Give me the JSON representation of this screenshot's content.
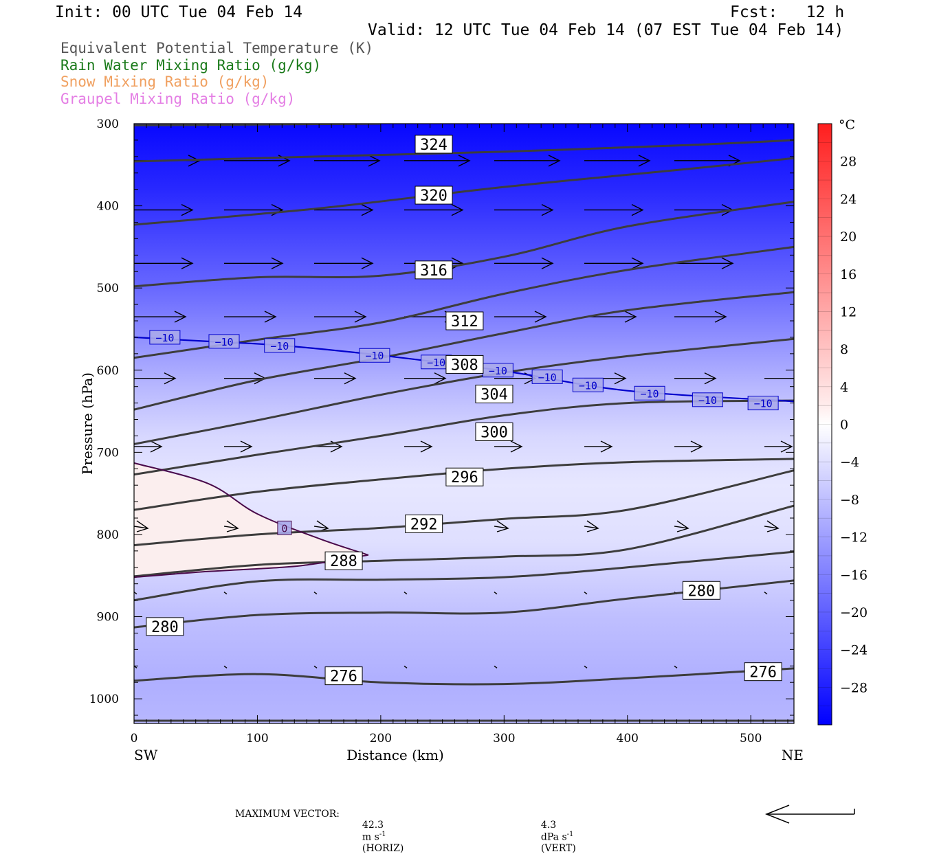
{
  "header": {
    "init": "Init: 00 UTC Tue 04 Feb 14",
    "fcst": "Fcst:   12 h",
    "valid": "Valid: 12 UTC Tue 04 Feb 14 (07 EST Tue 04 Feb 14)"
  },
  "legend": [
    {
      "label": "Equivalent Potential Temperature (K)",
      "color": "#555555"
    },
    {
      "label": "Rain Water Mixing Ratio (g/kg)",
      "color": "#1a7a1a"
    },
    {
      "label": "Snow Mixing Ratio (g/kg)",
      "color": "#f0a060"
    },
    {
      "label": "Graupel Mixing Ratio (g/kg)",
      "color": "#e47ee4"
    }
  ],
  "footer": {
    "max_vector_label": "MAXIMUM VECTOR:",
    "horiz_value": "42.3",
    "horiz_unit": "m s",
    "horiz_tag": "(HORIZ)",
    "vert_value": "4.3",
    "vert_unit": "dPa s",
    "vert_tag": "(VERT)",
    "exponent": "-1"
  },
  "chart_data": {
    "type": "cross-section contour",
    "xlabel": "Distance (km)",
    "ylabel": "Pressure (hPa)",
    "x_left_label": "SW",
    "x_right_label": "NE",
    "xlim": [
      0,
      535
    ],
    "ylim": [
      300,
      1030
    ],
    "x_ticks": [
      0,
      100,
      200,
      300,
      400,
      500
    ],
    "y_ticks": [
      300,
      400,
      500,
      600,
      700,
      800,
      900,
      1000
    ],
    "colorbar": {
      "unit": "°C",
      "range": [
        -32,
        32
      ],
      "tick_labels": [
        "28",
        "24",
        "20",
        "16",
        "12",
        "8",
        "4",
        "0",
        "−4",
        "−8",
        "−12",
        "−16",
        "−20",
        "−24",
        "−28"
      ],
      "tick_values": [
        28,
        24,
        20,
        16,
        12,
        8,
        4,
        0,
        -4,
        -8,
        -12,
        -16,
        -20,
        -24,
        -28
      ]
    },
    "temperature_bands": [
      {
        "p": 300,
        "t": -31
      },
      {
        "p": 380,
        "t": -27
      },
      {
        "p": 440,
        "t": -23
      },
      {
        "p": 500,
        "t": -19
      },
      {
        "p": 560,
        "t": -14
      },
      {
        "p": 620,
        "t": -9
      },
      {
        "p": 680,
        "t": -5
      },
      {
        "p": 740,
        "t": -3
      },
      {
        "p": 810,
        "t": -4
      },
      {
        "p": 900,
        "t": -8
      },
      {
        "p": 980,
        "t": -10
      },
      {
        "p": 1030,
        "t": -9
      }
    ],
    "theta_e_lines": [
      {
        "label": "324",
        "label_at": [
          243,
          325
        ],
        "points": [
          [
            0,
            302
          ],
          [
            200,
            300
          ]
        ]
      },
      {
        "label": "",
        "label_at": null,
        "points": [
          [
            0,
            346
          ],
          [
            150,
            340
          ],
          [
            300,
            334
          ],
          [
            450,
            326
          ],
          [
            535,
            320
          ]
        ]
      },
      {
        "label": "320",
        "label_at": [
          243,
          387
        ],
        "points": [
          [
            0,
            423
          ],
          [
            150,
            403
          ],
          [
            300,
            377
          ],
          [
            450,
            355
          ],
          [
            535,
            342
          ]
        ]
      },
      {
        "label": "",
        "label_at": null,
        "points": [
          [
            0,
            498
          ],
          [
            100,
            487
          ],
          [
            200,
            485
          ],
          [
            300,
            462
          ],
          [
            400,
            425
          ],
          [
            535,
            395
          ]
        ]
      },
      {
        "label": "316",
        "label_at": [
          243,
          478
        ],
        "points": [
          [
            0,
            585
          ],
          [
            100,
            563
          ],
          [
            200,
            542
          ],
          [
            300,
            507
          ],
          [
            400,
            478
          ],
          [
            535,
            450
          ]
        ]
      },
      {
        "label": "312",
        "label_at": [
          268,
          540
        ],
        "points": [
          [
            0,
            648
          ],
          [
            100,
            612
          ],
          [
            200,
            585
          ],
          [
            300,
            555
          ],
          [
            400,
            527
          ],
          [
            535,
            505
          ]
        ]
      },
      {
        "label": "308",
        "label_at": [
          268,
          593
        ],
        "points": [
          [
            0,
            690
          ],
          [
            100,
            661
          ],
          [
            200,
            630
          ],
          [
            300,
            603
          ],
          [
            400,
            583
          ],
          [
            535,
            562
          ]
        ]
      },
      {
        "label": "304",
        "label_at": [
          292,
          629
        ],
        "points": [
          [
            0,
            727
          ],
          [
            100,
            703
          ],
          [
            200,
            680
          ],
          [
            300,
            655
          ],
          [
            400,
            640
          ],
          [
            535,
            637
          ]
        ]
      },
      {
        "label": "300",
        "label_at": [
          292,
          675
        ],
        "points": [
          [
            0,
            770
          ],
          [
            100,
            748
          ],
          [
            200,
            733
          ],
          [
            300,
            720
          ],
          [
            400,
            712
          ],
          [
            535,
            708
          ]
        ]
      },
      {
        "label": "296",
        "label_at": [
          268,
          730
        ],
        "points": [
          [
            0,
            813
          ],
          [
            100,
            800
          ],
          [
            200,
            792
          ],
          [
            300,
            781
          ],
          [
            400,
            770
          ],
          [
            535,
            722
          ]
        ]
      },
      {
        "label": "292",
        "label_at": [
          235,
          787
        ],
        "points": [
          [
            0,
            851
          ],
          [
            100,
            837
          ],
          [
            200,
            832
          ],
          [
            300,
            827
          ],
          [
            400,
            818
          ],
          [
            535,
            765
          ]
        ]
      },
      {
        "label": "288",
        "label_at": [
          170,
          832
        ],
        "points": [
          [
            0,
            880
          ],
          [
            100,
            857
          ],
          [
            200,
            855
          ],
          [
            300,
            852
          ],
          [
            400,
            840
          ],
          [
            535,
            821
          ]
        ]
      },
      {
        "label": "280",
        "label_at": [
          25,
          912
        ],
        "points": [
          [
            0,
            913
          ],
          [
            100,
            898
          ],
          [
            200,
            895
          ],
          [
            300,
            895
          ],
          [
            400,
            878
          ],
          [
            535,
            856
          ]
        ]
      },
      {
        "label": "280",
        "label_at": [
          460,
          868
        ],
        "points": []
      },
      {
        "label": "276",
        "label_at": [
          170,
          972
        ],
        "points": [
          [
            0,
            978
          ],
          [
            100,
            970
          ],
          [
            200,
            980
          ],
          [
            300,
            982
          ],
          [
            400,
            975
          ],
          [
            535,
            963
          ]
        ]
      },
      {
        "label": "276",
        "label_at": [
          510,
          967
        ],
        "points": []
      }
    ],
    "isotherms": [
      {
        "label": "−10",
        "color": "#0000cc",
        "points": [
          [
            0,
            560
          ],
          [
            60,
            565
          ],
          [
            120,
            570
          ],
          [
            200,
            582
          ],
          [
            300,
            601
          ],
          [
            400,
            625
          ],
          [
            535,
            638
          ]
        ],
        "label_at": [
          [
            25,
            560
          ],
          [
            73,
            565
          ],
          [
            118,
            570
          ],
          [
            195,
            582
          ],
          [
            245,
            590
          ],
          [
            295,
            600
          ],
          [
            335,
            608
          ],
          [
            368,
            618
          ],
          [
            418,
            628
          ],
          [
            465,
            636
          ],
          [
            510,
            640
          ]
        ]
      },
      {
        "label": "0",
        "color": "#4a0a4a",
        "points": [
          [
            0,
            713
          ],
          [
            60,
            738
          ],
          [
            100,
            775
          ],
          [
            150,
            805
          ],
          [
            190,
            825
          ],
          [
            150,
            835
          ],
          [
            120,
            840
          ],
          [
            60,
            845
          ],
          [
            0,
            852
          ]
        ],
        "label_at": [
          [
            122,
            792
          ]
        ]
      }
    ],
    "wind_vectors_note": "horizontal arrows pointing toward NE aloft, weaker near surface"
  }
}
